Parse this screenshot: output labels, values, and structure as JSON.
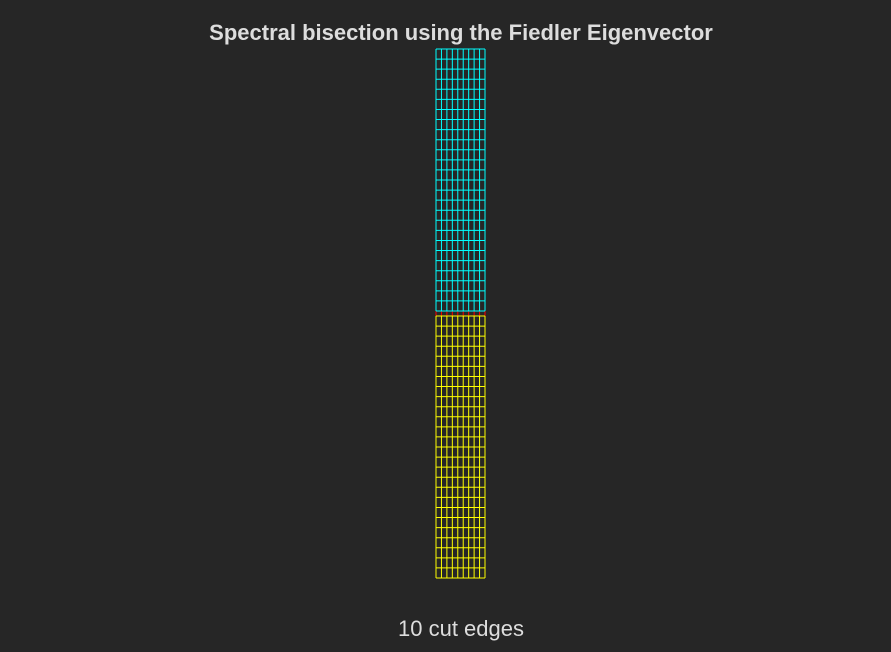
{
  "title": "Spectral bisection using the Fiedler Eigenvector",
  "caption": "10 cut edges",
  "graph": {
    "type": "grid-graph-partition",
    "columns": 10,
    "rows": 54,
    "partitions": [
      {
        "part": "A",
        "rows": 27,
        "color": "#00ffff"
      },
      {
        "part": "B",
        "rows": 27,
        "color": "#ffff00"
      }
    ],
    "cut_edge_color": "#ff0000",
    "cut_edges": 10
  }
}
